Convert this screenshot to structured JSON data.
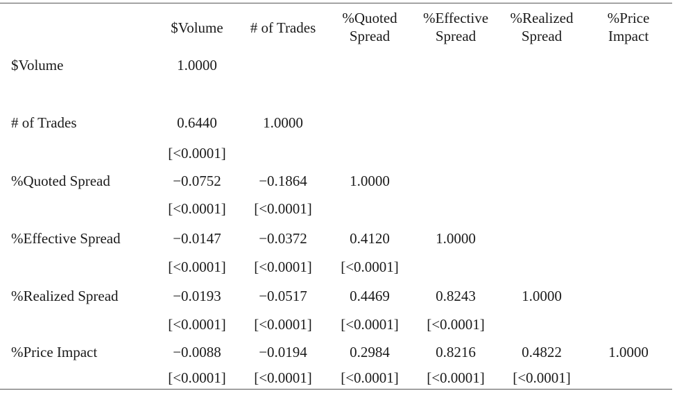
{
  "table": {
    "columns": [
      {
        "line1": "$Volume",
        "line2": ""
      },
      {
        "line1": "# of Trades",
        "line2": ""
      },
      {
        "line1": "%Quoted",
        "line2": "Spread"
      },
      {
        "line1": "%Effective",
        "line2": "Spread"
      },
      {
        "line1": "%Realized",
        "line2": "Spread"
      },
      {
        "line1": "%Price",
        "line2": "Impact"
      }
    ],
    "rows": [
      {
        "label": "$Volume",
        "values": [
          "1.0000",
          "",
          "",
          "",
          "",
          ""
        ],
        "pvalues": [
          "",
          "",
          "",
          "",
          "",
          ""
        ]
      },
      {
        "label": "# of Trades",
        "values": [
          "0.6440",
          "1.0000",
          "",
          "",
          "",
          ""
        ],
        "pvalues": [
          "[<0.0001]",
          "",
          "",
          "",
          "",
          ""
        ]
      },
      {
        "label": "%Quoted Spread",
        "values": [
          "−0.0752",
          "−0.1864",
          "1.0000",
          "",
          "",
          ""
        ],
        "pvalues": [
          "[<0.0001]",
          "[<0.0001]",
          "",
          "",
          "",
          ""
        ]
      },
      {
        "label": "%Effective Spread",
        "values": [
          "−0.0147",
          "−0.0372",
          "0.4120",
          "1.0000",
          "",
          ""
        ],
        "pvalues": [
          "[<0.0001]",
          "[<0.0001]",
          "[<0.0001]",
          "",
          "",
          ""
        ]
      },
      {
        "label": "%Realized Spread",
        "values": [
          "−0.0193",
          "−0.0517",
          "0.4469",
          "0.8243",
          "1.0000",
          ""
        ],
        "pvalues": [
          "[<0.0001]",
          "[<0.0001]",
          "[<0.0001]",
          "[<0.0001]",
          "",
          ""
        ]
      },
      {
        "label": "%Price Impact",
        "values": [
          "−0.0088",
          "−0.0194",
          "0.2984",
          "0.8216",
          "0.4822",
          "1.0000"
        ],
        "pvalues": [
          "[<0.0001]",
          "[<0.0001]",
          "[<0.0001]",
          "[<0.0001]",
          "[<0.0001]",
          ""
        ]
      }
    ]
  }
}
